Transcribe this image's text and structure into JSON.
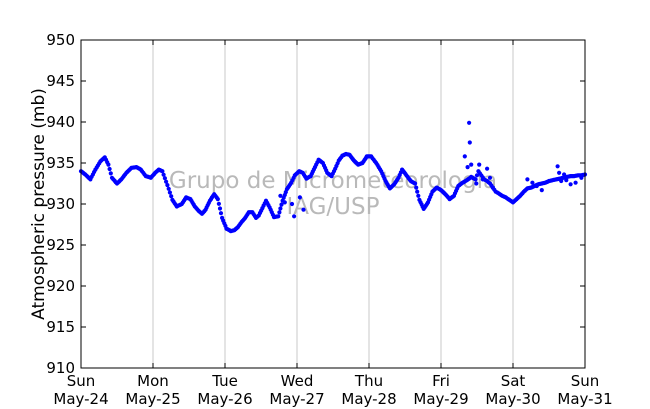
{
  "chart_data": {
    "type": "scatter",
    "title": "",
    "xlabel": "",
    "ylabel": "Atmospheric pressure (mb)",
    "ylim": [
      910,
      950
    ],
    "yticks": [
      910,
      915,
      920,
      925,
      930,
      935,
      940,
      945,
      950
    ],
    "xlim": [
      0,
      7
    ],
    "xtick_labels": [
      [
        "Sun",
        "May-24"
      ],
      [
        "Mon",
        "May-25"
      ],
      [
        "Tue",
        "May-26"
      ],
      [
        "Wed",
        "May-27"
      ],
      [
        "Thu",
        "May-28"
      ],
      [
        "Fri",
        "May-29"
      ],
      [
        "Sat",
        "May-30"
      ],
      [
        "Sun",
        "May-31"
      ]
    ],
    "grid": "vertical",
    "marker_color": "#0000ff",
    "watermark": [
      "Grupo de Micrometeorologia",
      "IAG/USP"
    ],
    "series": [
      {
        "name": "",
        "x": [
          0.0,
          0.06,
          0.13,
          0.2,
          0.27,
          0.33,
          0.38,
          0.43,
          0.5,
          0.56,
          0.63,
          0.7,
          0.77,
          0.83,
          0.9,
          0.97,
          1.03,
          1.08,
          1.13,
          1.2,
          1.27,
          1.33,
          1.4,
          1.46,
          1.52,
          1.58,
          1.63,
          1.68,
          1.73,
          1.79,
          1.85,
          1.9,
          1.96,
          2.02,
          2.08,
          2.13,
          2.18,
          2.23,
          2.28,
          2.33,
          2.38,
          2.43,
          2.47,
          2.52,
          2.57,
          2.62,
          2.68,
          2.74,
          2.8,
          2.86,
          2.92,
          2.97,
          3.03,
          3.08,
          3.13,
          3.19,
          3.25,
          3.3,
          3.36,
          3.42,
          3.48,
          3.53,
          3.58,
          3.63,
          3.68,
          3.73,
          3.79,
          3.85,
          3.91,
          3.97,
          4.03,
          4.1,
          4.17,
          4.23,
          4.29,
          4.35,
          4.41,
          4.46,
          4.52,
          4.58,
          4.64,
          4.7,
          4.76,
          4.82,
          4.88,
          4.94,
          5.0,
          5.06,
          5.12,
          5.18,
          5.24,
          5.3,
          5.36,
          5.42,
          5.48,
          5.52,
          5.56,
          5.6,
          5.64,
          5.68,
          5.72,
          5.76,
          5.8,
          5.85,
          5.9,
          5.95,
          6.0,
          6.05,
          6.1,
          6.15,
          6.2,
          6.25,
          6.3,
          6.35,
          6.4,
          6.45,
          6.5,
          6.55,
          6.6,
          6.65,
          6.7,
          6.75,
          6.8,
          6.85,
          6.9,
          6.95,
          7.0
        ],
        "y": [
          934.0,
          933.6,
          933.0,
          934.2,
          935.2,
          935.7,
          934.8,
          933.2,
          932.5,
          933.0,
          933.8,
          934.4,
          934.5,
          934.2,
          933.4,
          933.2,
          933.8,
          934.2,
          934.0,
          932.3,
          930.5,
          929.7,
          930.0,
          930.8,
          930.6,
          929.7,
          929.2,
          928.8,
          929.3,
          930.4,
          931.2,
          930.6,
          928.3,
          927.0,
          926.7,
          926.8,
          927.2,
          927.8,
          928.3,
          929.0,
          929.0,
          928.3,
          928.6,
          929.5,
          930.4,
          929.6,
          928.4,
          928.5,
          930.4,
          931.8,
          932.6,
          933.5,
          934.0,
          933.8,
          933.1,
          933.4,
          934.5,
          935.4,
          935.0,
          933.8,
          933.4,
          934.3,
          935.3,
          935.9,
          936.1,
          936.0,
          935.3,
          934.8,
          935.0,
          935.8,
          935.8,
          935.0,
          934.0,
          932.8,
          931.9,
          932.4,
          933.2,
          934.2,
          933.5,
          932.8,
          932.5,
          930.5,
          929.4,
          930.2,
          931.5,
          932.0,
          931.7,
          931.2,
          930.6,
          931.0,
          932.2,
          932.6,
          932.9,
          933.3,
          933.0,
          934.0,
          933.5,
          933.0,
          932.8,
          932.5,
          932.0,
          931.5,
          931.3,
          931.0,
          930.8,
          930.5,
          930.2,
          930.6,
          931.0,
          931.5,
          931.9,
          932.0,
          932.2,
          932.4,
          932.5,
          932.6,
          932.8,
          932.9,
          933.0,
          933.1,
          933.2,
          933.3,
          933.4,
          933.4,
          933.5,
          933.5,
          933.6
        ]
      }
    ],
    "scattered_points": {
      "x": [
        2.77,
        2.83,
        2.93,
        2.96,
        3.04,
        3.09,
        5.33,
        5.37,
        5.39,
        5.4,
        5.42,
        5.49,
        5.53,
        5.58,
        5.64,
        5.68,
        5.72,
        6.2,
        6.27,
        6.33,
        6.4,
        6.62,
        6.64,
        6.67,
        6.71,
        6.74,
        6.8,
        6.87,
        6.95
      ],
      "y": [
        931.0,
        930.2,
        930.0,
        928.5,
        930.8,
        929.3,
        935.8,
        934.5,
        939.9,
        937.5,
        934.8,
        932.5,
        934.8,
        933.0,
        934.3,
        933.2,
        932.0,
        933.0,
        932.6,
        932.2,
        931.7,
        934.6,
        933.8,
        932.8,
        933.6,
        932.9,
        932.4,
        932.6,
        933.2
      ]
    }
  }
}
